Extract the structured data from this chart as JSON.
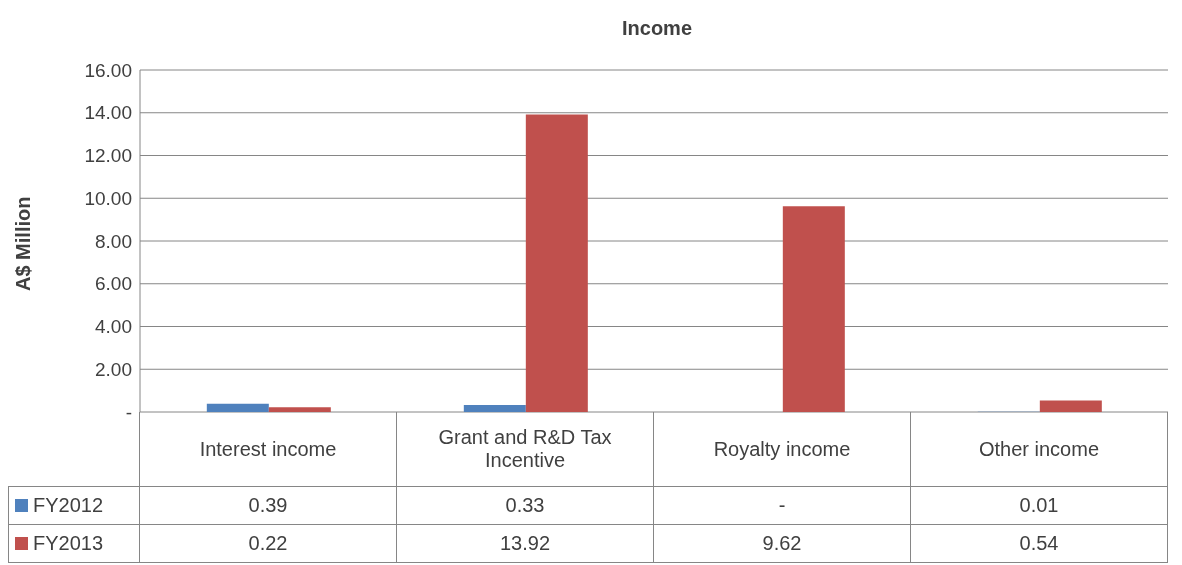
{
  "chart_data": {
    "type": "bar",
    "title": "Income",
    "ylabel": "A$ Million",
    "categories": [
      "Interest income",
      "Grant and R&D Tax Incentive",
      "Royalty income",
      "Other income"
    ],
    "series": [
      {
        "name": "FY2012",
        "color": "#4f81bd",
        "values": [
          0.39,
          0.33,
          0,
          0.01
        ],
        "value_labels": [
          "0.39",
          "0.33",
          "-",
          "0.01"
        ]
      },
      {
        "name": "FY2013",
        "color": "#c0504d",
        "values": [
          0.22,
          13.92,
          9.62,
          0.54
        ],
        "value_labels": [
          "0.22",
          "13.92",
          "9.62",
          "0.54"
        ]
      }
    ],
    "ylim": [
      0,
      16
    ],
    "yticks": [
      {
        "value": 0,
        "label": "-"
      },
      {
        "value": 2,
        "label": "2.00"
      },
      {
        "value": 4,
        "label": "4.00"
      },
      {
        "value": 6,
        "label": "6.00"
      },
      {
        "value": 8,
        "label": "8.00"
      },
      {
        "value": 10,
        "label": "10.00"
      },
      {
        "value": 12,
        "label": "12.00"
      },
      {
        "value": 14,
        "label": "14.00"
      },
      {
        "value": 16,
        "label": "16.00"
      }
    ],
    "grid": "y",
    "legend": "bottom"
  }
}
